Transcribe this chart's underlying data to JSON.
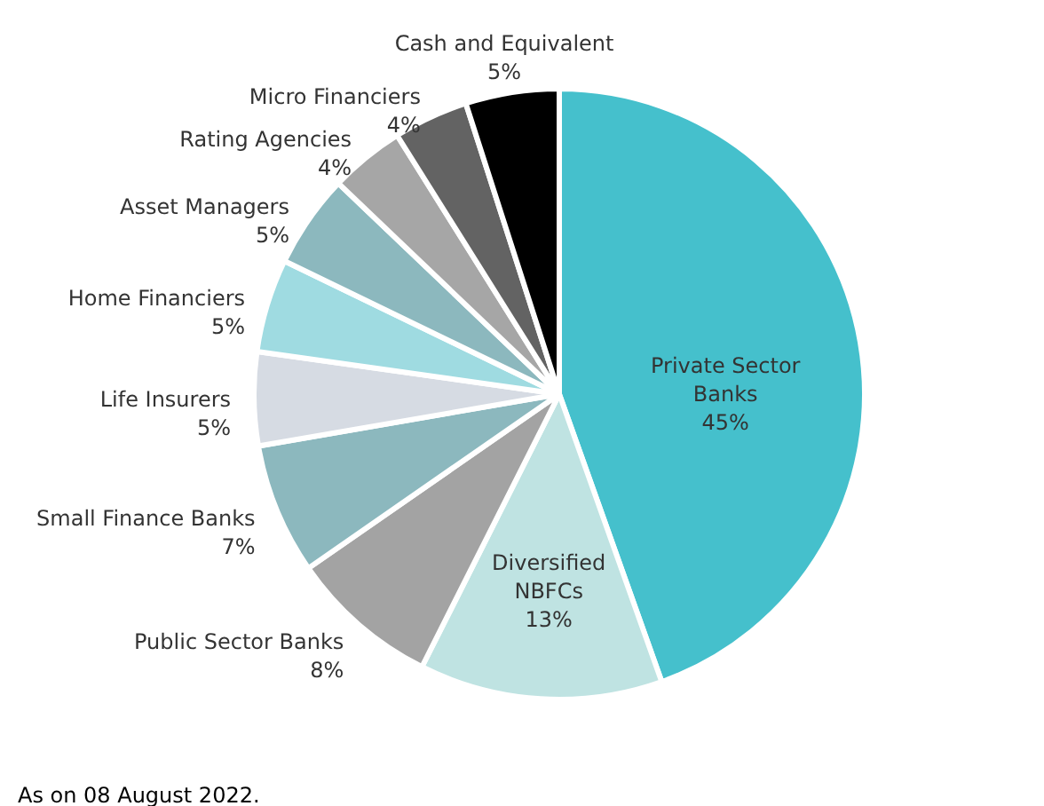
{
  "chart_data": {
    "type": "pie",
    "categories": [
      "Private Sector Banks",
      "Diversified NBFCs",
      "Public Sector Banks",
      "Small Finance Banks",
      "Life Insurers",
      "Home Financiers",
      "Asset Managers",
      "Rating Agencies",
      "Micro Financiers",
      "Cash and Equivalent"
    ],
    "values": [
      45,
      13,
      8,
      7,
      5,
      5,
      5,
      4,
      4,
      5
    ],
    "value_labels": [
      "45%",
      "13%",
      "8%",
      "7%",
      "5%",
      "5%",
      "5%",
      "4%",
      "4%",
      "5%"
    ],
    "colors": [
      "#45c0cc",
      "#bfe3e2",
      "#a3a3a3",
      "#8cb8be",
      "#d6dbe3",
      "#9fdbe1",
      "#8cb8be",
      "#a6a6a6",
      "#636363",
      "#000000"
    ],
    "annotations": [
      "As on 08 August 2022."
    ]
  }
}
